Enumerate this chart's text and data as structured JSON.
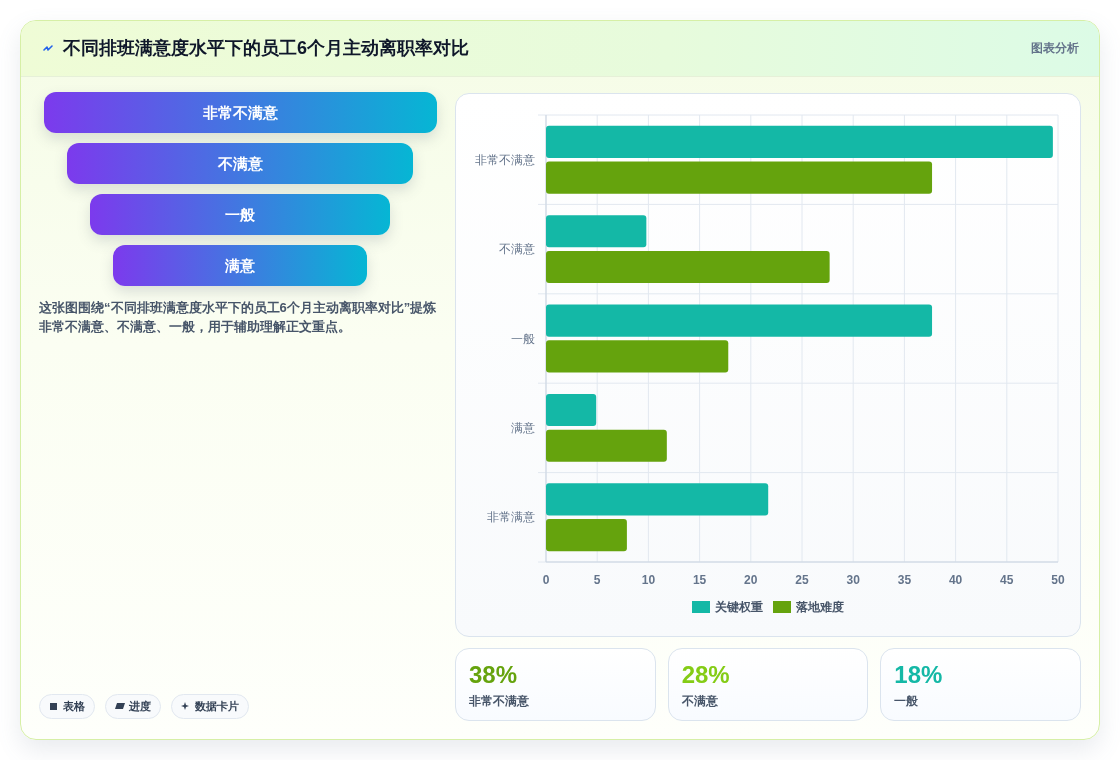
{
  "chart_data": [
    {
      "type": "other",
      "title": "不同排班满意度水平下的员工6个月主动离职率对比",
      "subtitle": "图表分析",
      "categories": [
        "非常不满意",
        "不满意",
        "一般",
        "满意"
      ],
      "annotations": [
        "这张图围绕“不同排班满意度水平下的员工6个月主动离职率对比”提炼非常不满意、不满意、一般，用于辅助理解正文重点。",
        "表格",
        "进度",
        "数据卡片"
      ]
    },
    {
      "type": "bar",
      "orientation": "horizontal",
      "categories": [
        "非常不满意",
        "不满意",
        "一般",
        "满意",
        "非常满意"
      ],
      "series": [
        {
          "name": "关键权重",
          "color": "#14b8a6",
          "values": [
            49.5,
            9.8,
            37.7,
            4.9,
            21.7
          ]
        },
        {
          "name": "落地难度",
          "color": "#65a30d",
          "values": [
            37.7,
            27.7,
            17.8,
            11.8,
            7.9
          ]
        }
      ],
      "xlim": [
        0,
        50
      ],
      "xticks": [
        0,
        5,
        10,
        15,
        20,
        25,
        30,
        35,
        40,
        45,
        50
      ],
      "grid": true,
      "legend": "bottom"
    },
    {
      "type": "other",
      "categories": [
        "非常不满意",
        "不满意",
        "一般"
      ],
      "value_labels": [
        "38%",
        "28%",
        "18%"
      ]
    }
  ]
}
